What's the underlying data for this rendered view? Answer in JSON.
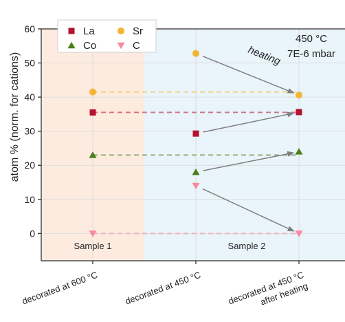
{
  "chart_data": {
    "type": "scatter",
    "ylabel": "atom % (norm. for cations)",
    "ylim": [
      -8,
      60
    ],
    "y_ticks": [
      0,
      10,
      20,
      30,
      40,
      50,
      60
    ],
    "grid": true,
    "legend_position": "top-left",
    "categories": [
      "decorated at 600 °C",
      "decorated at 450 °C",
      "decorated at 450 °C after heating"
    ],
    "category_lines": [
      [
        "decorated at 600 °C"
      ],
      [
        "decorated at 450 °C"
      ],
      [
        "decorated at 450 °C",
        "after heating"
      ]
    ],
    "regions": [
      {
        "label": "Sample 1",
        "span": [
          0,
          0
        ],
        "color": "#fdebe0"
      },
      {
        "label": "Sample 2",
        "span": [
          1,
          2
        ],
        "color": "#eaf4fb"
      }
    ],
    "series": [
      {
        "name": "La",
        "marker": "square",
        "color": "#b5122f",
        "values": [
          35.5,
          29.3,
          35.6
        ]
      },
      {
        "name": "Sr",
        "marker": "circle",
        "color": "#f2b632",
        "values": [
          41.5,
          52.8,
          40.6
        ]
      },
      {
        "name": "Co",
        "marker": "triangle-up",
        "color": "#4c7f1b",
        "values": [
          23.0,
          18.0,
          24.0
        ]
      },
      {
        "name": "C",
        "marker": "triangle-down",
        "color": "#f7889e",
        "values": [
          0,
          14.0,
          0
        ]
      }
    ],
    "annotations": {
      "conditions_line1": "450 °C",
      "conditions_line2": "7E-6 mbar",
      "arrow_label": "heating"
    }
  }
}
